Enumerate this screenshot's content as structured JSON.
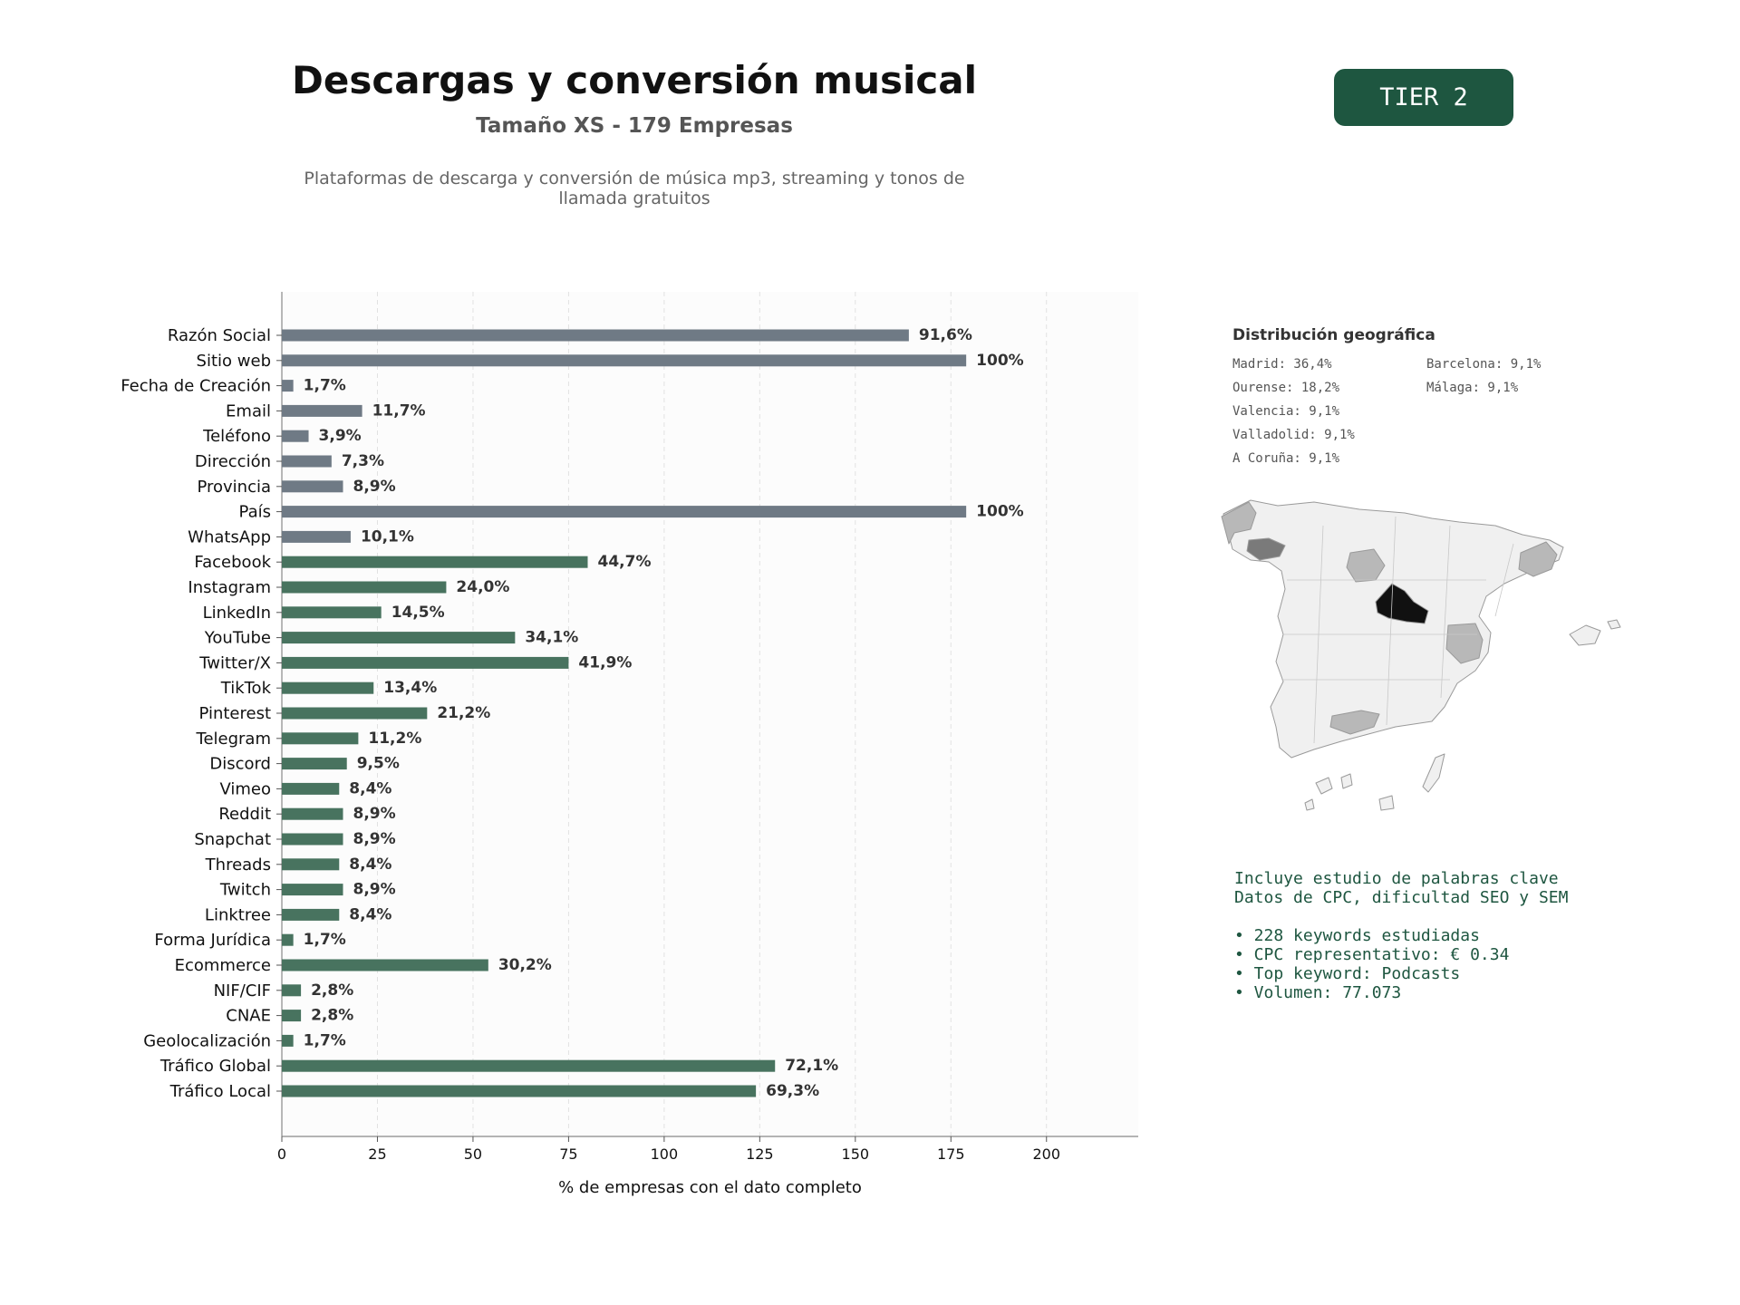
{
  "header": {
    "title": "Descargas y conversión musical",
    "subtitle": "Tamaño XS - 179 Empresas",
    "description": "Plataformas de descarga y conversión de música mp3, streaming y tonos de llamada gratuitos",
    "tier_badge": "TIER 2"
  },
  "colors": {
    "accent": "#1e5640",
    "bar_basic": "#6f7a85",
    "bar_social": "#48735f"
  },
  "chart_data": {
    "type": "bar",
    "orientation": "horizontal",
    "categories": [
      "Razón Social",
      "Sitio web",
      "Fecha de Creación",
      "Email",
      "Teléfono",
      "Dirección",
      "Provincia",
      "País",
      "WhatsApp",
      "Facebook",
      "Instagram",
      "LinkedIn",
      "YouTube",
      "Twitter/X",
      "TikTok",
      "Pinterest",
      "Telegram",
      "Discord",
      "Vimeo",
      "Reddit",
      "Snapchat",
      "Threads",
      "Twitch",
      "Linktree",
      "Forma Jurídica",
      "Ecommerce",
      "NIF/CIF",
      "CNAE",
      "Geolocalización",
      "Tráfico Global",
      "Tráfico Local"
    ],
    "values": [
      164,
      179,
      3,
      21,
      7,
      13,
      16,
      179,
      18,
      80,
      43,
      26,
      61,
      75,
      24,
      38,
      20,
      17,
      15,
      16,
      16,
      15,
      16,
      15,
      3,
      54,
      5,
      5,
      3,
      129,
      124
    ],
    "value_labels": [
      "91,6%",
      "100%",
      "1,7%",
      "11,7%",
      "3,9%",
      "7,3%",
      "8,9%",
      "100%",
      "10,1%",
      "44,7%",
      "24,0%",
      "14,5%",
      "34,1%",
      "41,9%",
      "13,4%",
      "21,2%",
      "11,2%",
      "9,5%",
      "8,4%",
      "8,9%",
      "8,9%",
      "8,4%",
      "8,9%",
      "8,4%",
      "1,7%",
      "30,2%",
      "2,8%",
      "2,8%",
      "1,7%",
      "72,1%",
      "69,3%"
    ],
    "group_of_bar": [
      "basic",
      "basic",
      "basic",
      "basic",
      "basic",
      "basic",
      "basic",
      "basic",
      "basic",
      "social",
      "social",
      "social",
      "social",
      "social",
      "social",
      "social",
      "social",
      "social",
      "social",
      "social",
      "social",
      "social",
      "social",
      "social",
      "social",
      "social",
      "social",
      "social",
      "social",
      "social",
      "social"
    ],
    "xlabel": "% de empresas con el dato completo",
    "ylabel": "",
    "xlim": [
      0,
      224
    ],
    "xticks": [
      0,
      25,
      50,
      75,
      100,
      125,
      150,
      175,
      200
    ],
    "grid": "vertical dashed"
  },
  "geo": {
    "title": "Distribución geográfica",
    "items": [
      "Madrid: 36,4%",
      "Ourense: 18,2%",
      "Valencia: 9,1%",
      "Valladolid: 9,1%",
      "A Coruña: 9,1%",
      "Barcelona: 9,1%",
      "Málaga: 9,1%"
    ]
  },
  "keywords": {
    "line1": "Incluye estudio de palabras clave",
    "line2": "Datos de CPC, dificultad SEO y SEM",
    "bullets": [
      "• 228 keywords estudiadas",
      "• CPC representativo: € 0.34",
      "• Top keyword: Podcasts",
      "• Volumen: 77.073"
    ]
  }
}
